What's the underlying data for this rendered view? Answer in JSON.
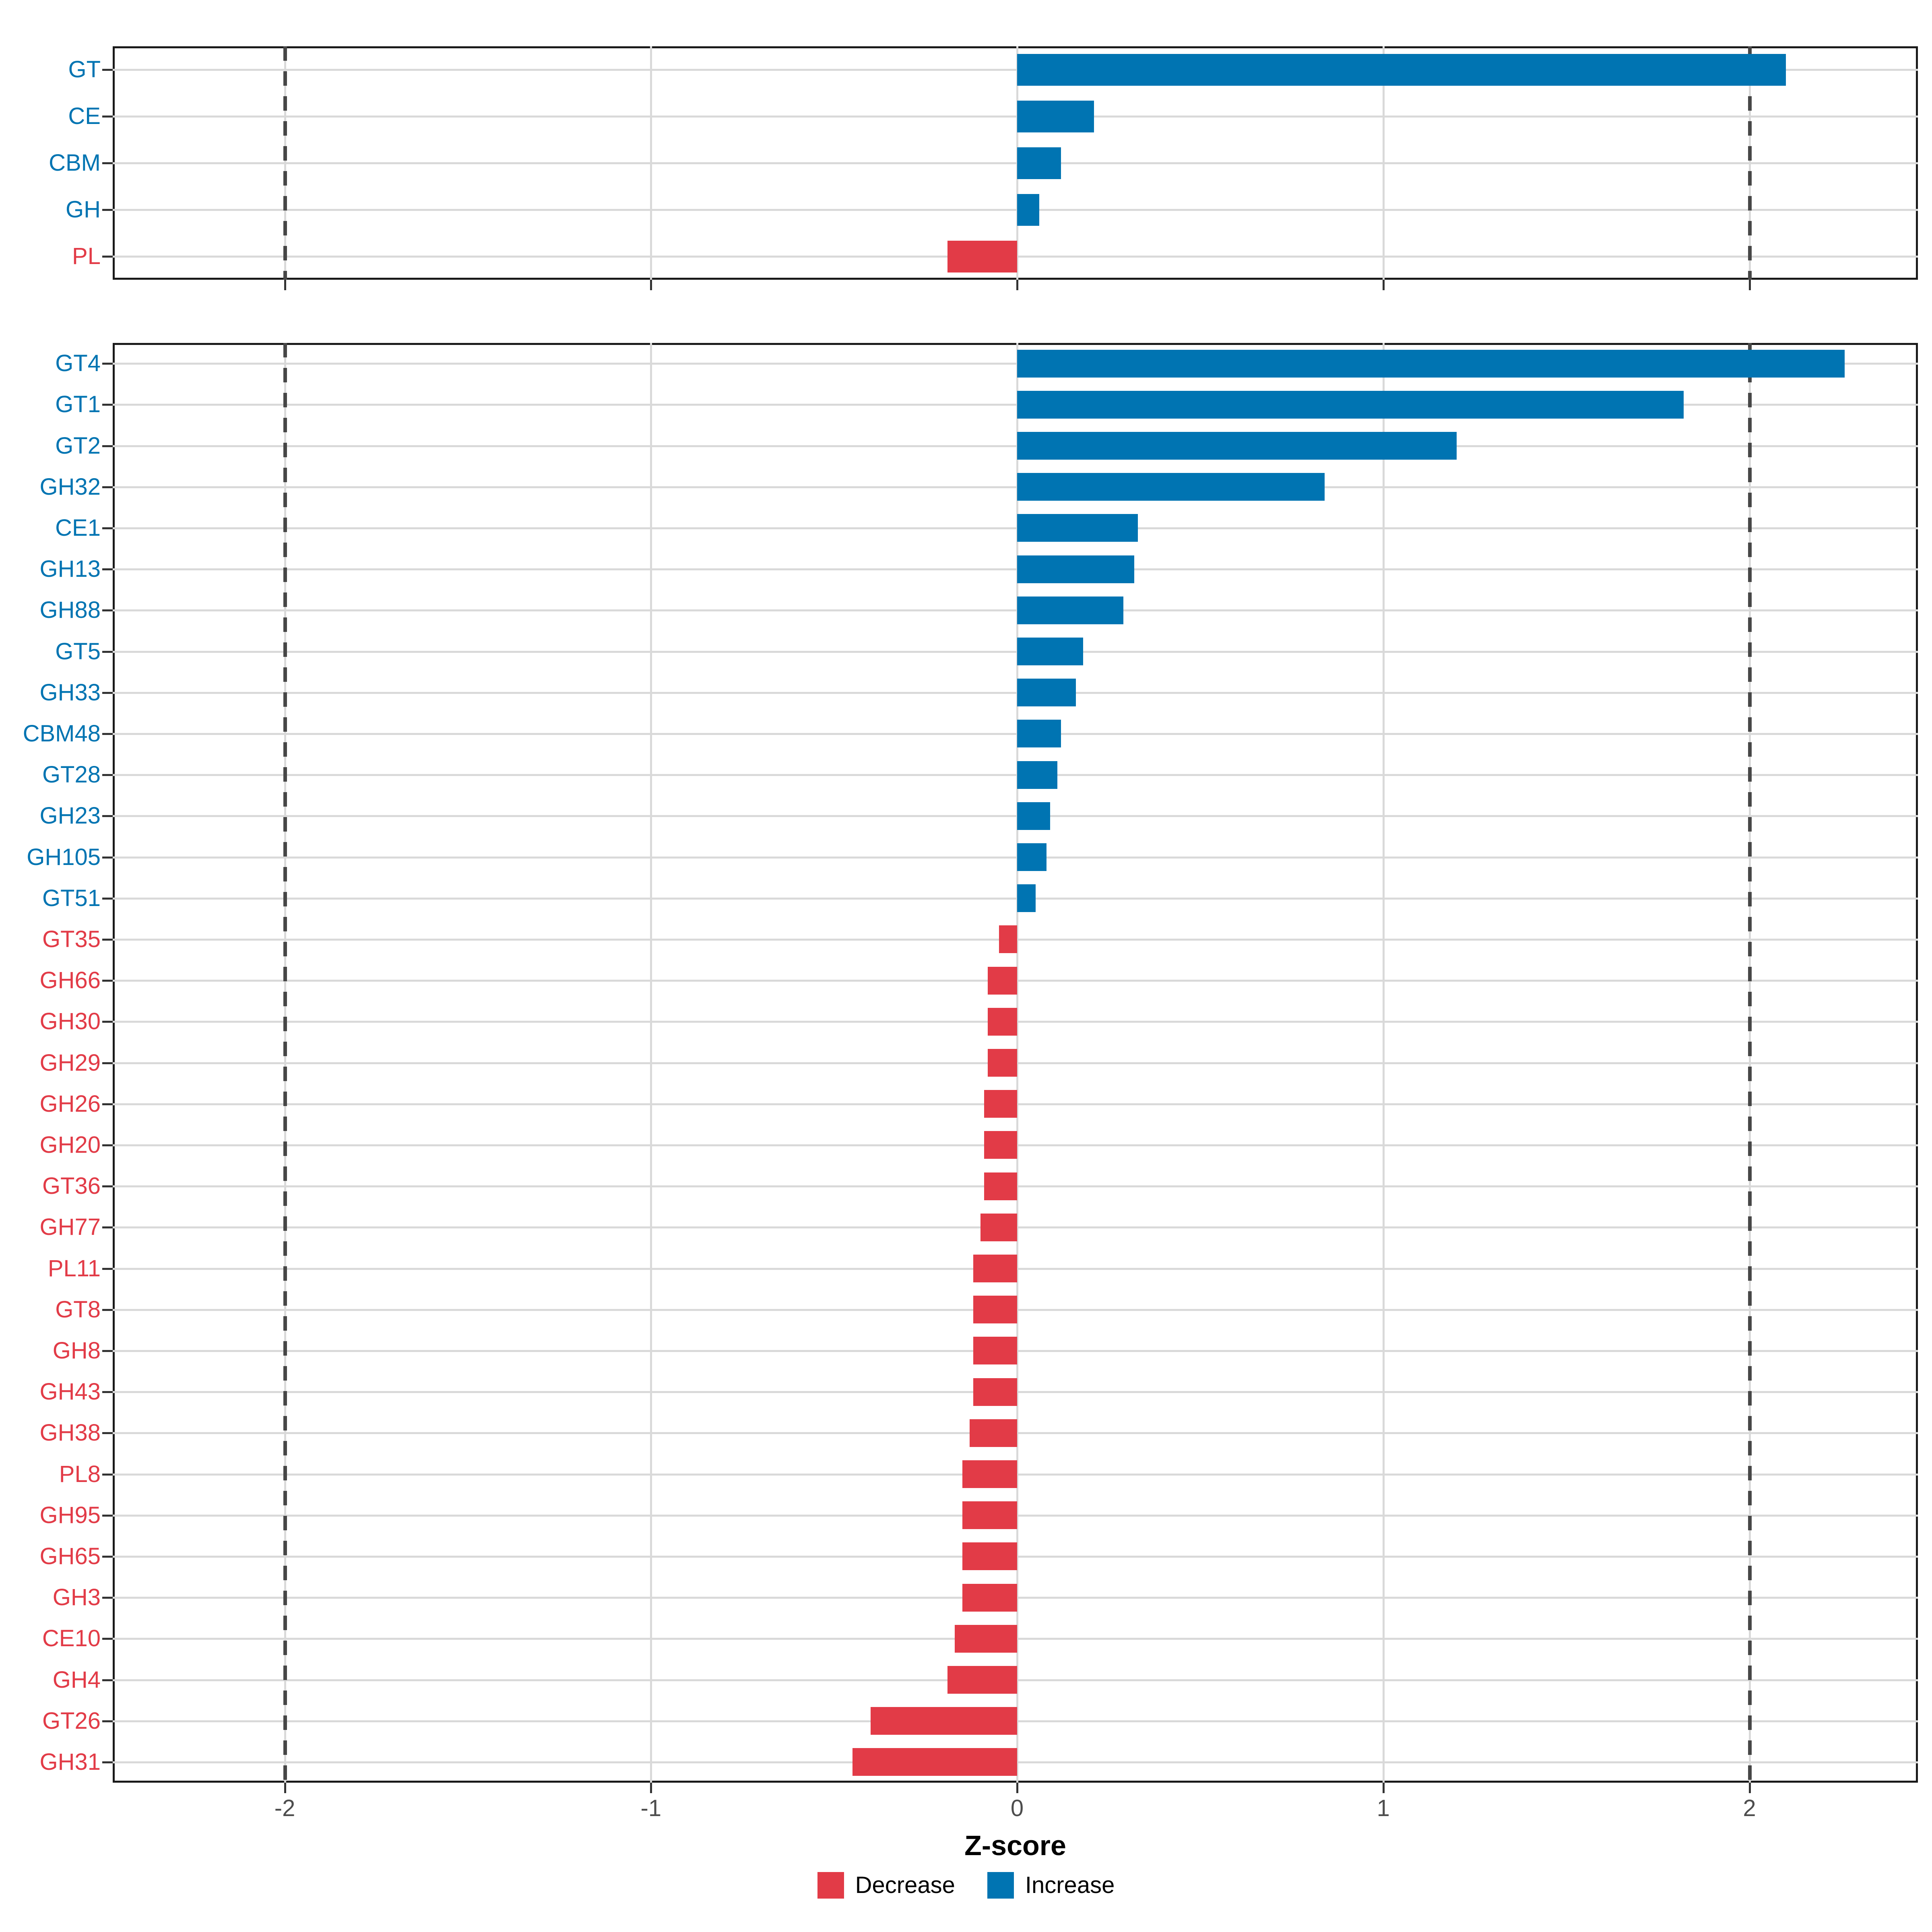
{
  "chart_data": [
    {
      "id": "class",
      "type": "bar",
      "orientation": "horizontal",
      "categories": [
        "GT",
        "CE",
        "CBM",
        "GH",
        "PL"
      ],
      "values": [
        2.1,
        0.21,
        0.12,
        0.06,
        -0.19
      ]
    },
    {
      "id": "family",
      "type": "bar",
      "orientation": "horizontal",
      "categories": [
        "GT4",
        "GT1",
        "GT2",
        "GH32",
        "CE1",
        "GH13",
        "GH88",
        "GT5",
        "GH33",
        "CBM48",
        "GT28",
        "GH23",
        "GH105",
        "GT51",
        "GT35",
        "GH66",
        "GH30",
        "GH29",
        "GH26",
        "GH20",
        "GT36",
        "GH77",
        "PL11",
        "GT8",
        "GH8",
        "GH43",
        "GH38",
        "PL8",
        "GH95",
        "GH65",
        "GH3",
        "CE10",
        "GH4",
        "GT26",
        "GH31"
      ],
      "values": [
        2.26,
        1.82,
        1.2,
        0.84,
        0.33,
        0.32,
        0.29,
        0.18,
        0.16,
        0.12,
        0.11,
        0.09,
        0.08,
        0.05,
        -0.05,
        -0.08,
        -0.08,
        -0.08,
        -0.09,
        -0.09,
        -0.09,
        -0.1,
        -0.12,
        -0.12,
        -0.12,
        -0.12,
        -0.13,
        -0.15,
        -0.15,
        -0.15,
        -0.15,
        -0.17,
        -0.19,
        -0.4,
        -0.45
      ]
    }
  ],
  "axis": {
    "xlabel": "Z-score",
    "tick_labels": [
      "-2",
      "-1",
      "0",
      "1",
      "2"
    ],
    "tick_values": [
      -2,
      -1,
      0,
      1,
      2
    ],
    "xlim": [
      -2.47,
      2.46
    ],
    "reference_lines": [
      -2,
      2
    ],
    "grid": "major-vertical-and-row-lines"
  },
  "legend": {
    "items": [
      {
        "label": "Decrease",
        "color": "#e23b47"
      },
      {
        "label": "Increase",
        "color": "#0074b2"
      }
    ]
  },
  "colors": {
    "increase": "#0074b2",
    "decrease": "#e23b47",
    "grid": "#d9d9d9",
    "dashed_line": "#474747",
    "tick_label": "#4d4d4d",
    "panel_border": "#1a1a1a"
  }
}
